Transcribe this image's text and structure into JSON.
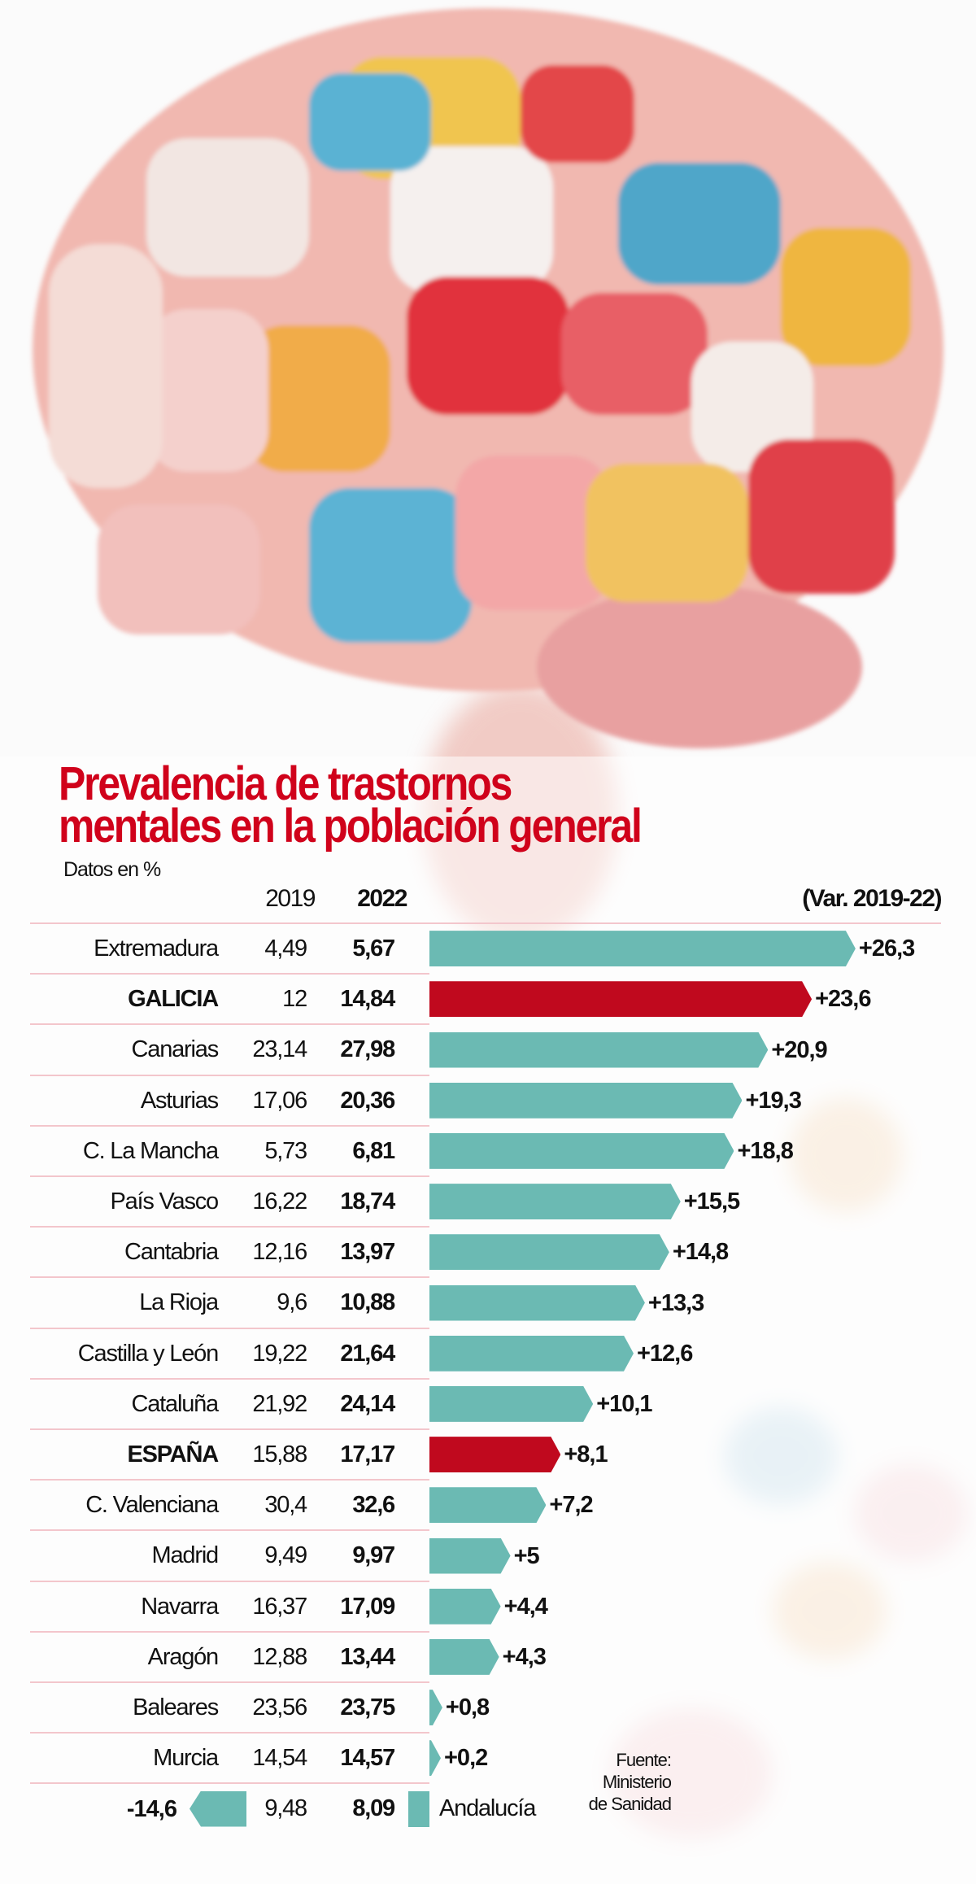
{
  "title_lines": [
    "Prevalencia de trastornos",
    "mentales en la población general"
  ],
  "subtitle": "Datos en %",
  "headers": {
    "y2019": "2019",
    "y2022": "2022",
    "var": "(Var. 2019-22)"
  },
  "source_lines": [
    "Fuente:",
    "Ministerio",
    "de Sanidad"
  ],
  "colors": {
    "bar": "#6bbab3",
    "highlight": "#c0091e",
    "title": "#d0021b"
  },
  "chart_data": {
    "type": "bar",
    "orientation": "horizontal",
    "title": "Prevalencia de trastornos mentales en la población general",
    "subtitle": "Datos en %",
    "categories": [
      "Extremadura",
      "GALICIA",
      "Canarias",
      "Asturias",
      "C.  La Mancha",
      "País Vasco",
      "Cantabria",
      "La Rioja",
      "Castilla y León",
      "Cataluña",
      "ESPAÑA",
      "C. Valenciana",
      "Madrid",
      "Navarra",
      "Aragón",
      "Baleares",
      "Murcia",
      "Andalucía"
    ],
    "values_2019": [
      "4,49",
      "12",
      "23,14",
      "17,06",
      "5,73",
      "16,22",
      "12,16",
      "9,6",
      "19,22",
      "21,92",
      "15,88",
      "30,4",
      "9,49",
      "16,37",
      "12,88",
      "23,56",
      "14,54",
      "9,48"
    ],
    "values_2022": [
      "5,67",
      "14,84",
      "27,98",
      "20,36",
      "6,81",
      "18,74",
      "13,97",
      "10,88",
      "21,64",
      "24,14",
      "17,17",
      "32,6",
      "9,97",
      "17,09",
      "13,44",
      "23,75",
      "14,57",
      "8,09"
    ],
    "variation": [
      26.3,
      23.6,
      20.9,
      19.3,
      18.8,
      15.5,
      14.8,
      13.3,
      12.6,
      10.1,
      8.1,
      7.2,
      5,
      4.4,
      4.3,
      0.8,
      0.2,
      -14.6
    ],
    "variation_labels": [
      "+26,3",
      "+23,6",
      "+20,9",
      "+19,3",
      "+18,8",
      "+15,5",
      "+14,8",
      "+13,3",
      "+12,6",
      "+10,1",
      "+8,1",
      "+7,2",
      "+5",
      "+4,4",
      "+4,3",
      "+0,8",
      "+0,2",
      "-14,6"
    ],
    "highlighted": [
      "GALICIA",
      "ESPAÑA"
    ],
    "bold_names": [
      "GALICIA",
      "ESPAÑA"
    ],
    "variation_label": "(Var. 2019-22)"
  }
}
